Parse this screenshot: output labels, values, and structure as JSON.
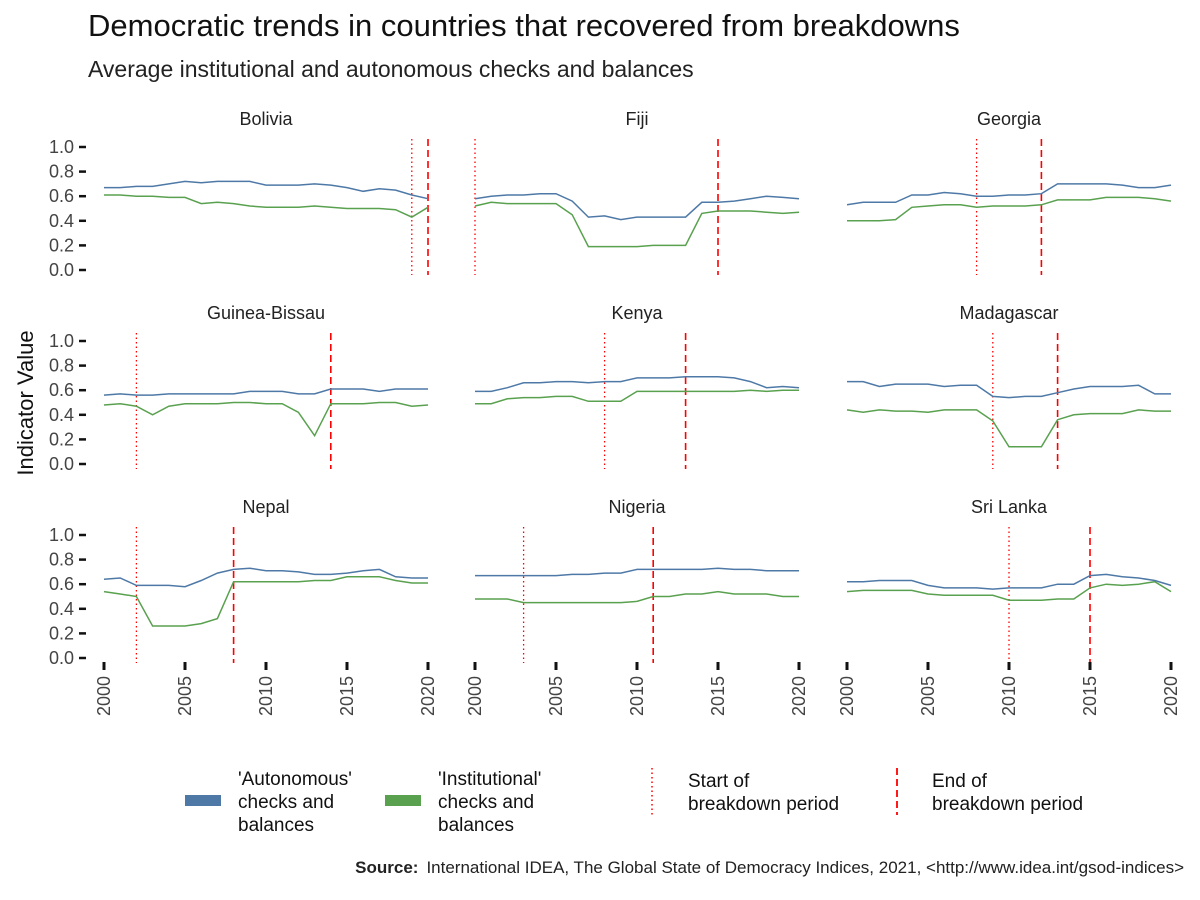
{
  "title": "Democratic trends in countries that recovered from breakdowns",
  "subtitle": "Average institutional and autonomous checks and balances",
  "source": {
    "label": "Source:",
    "text": "International IDEA, The Global State of Democracy Indices, 2021, <http://www.idea.int/gsod-indices>"
  },
  "colors": {
    "autonomous": "#4e79a7",
    "institutional": "#59a14f",
    "breakdown_lines": "#ff0000"
  },
  "chart_data": {
    "type": "line",
    "ylabel": "Indicator Value",
    "ylim": [
      0,
      1
    ],
    "yticks": [
      "0.0",
      "0.2",
      "0.4",
      "0.6",
      "0.8",
      "1.0"
    ],
    "xlim": [
      2000,
      2020
    ],
    "xticks": [
      "2000",
      "2005",
      "2010",
      "2015",
      "2020"
    ],
    "grid": false,
    "legend_position": "bottom",
    "years": [
      2000,
      2001,
      2002,
      2003,
      2004,
      2005,
      2006,
      2007,
      2008,
      2009,
      2010,
      2011,
      2012,
      2013,
      2014,
      2015,
      2016,
      2017,
      2018,
      2019,
      2020
    ],
    "legend": {
      "autonomous": [
        "'Autonomous'",
        "checks and",
        "balances"
      ],
      "institutional": [
        "'Institutional'",
        "checks and",
        "balances"
      ],
      "start": [
        "Start of",
        " breakdown period"
      ],
      "end": [
        "End of",
        " breakdown period"
      ]
    },
    "facets": [
      {
        "country": "Bolivia",
        "start": 2019,
        "end": 2020,
        "autonomous": [
          0.67,
          0.67,
          0.68,
          0.68,
          0.7,
          0.72,
          0.71,
          0.72,
          0.72,
          0.72,
          0.69,
          0.69,
          0.69,
          0.7,
          0.69,
          0.67,
          0.64,
          0.66,
          0.65,
          0.61,
          0.58
        ],
        "institutional": [
          0.61,
          0.61,
          0.6,
          0.6,
          0.59,
          0.59,
          0.54,
          0.55,
          0.54,
          0.52,
          0.51,
          0.51,
          0.51,
          0.52,
          0.51,
          0.5,
          0.5,
          0.5,
          0.49,
          0.43,
          0.51
        ]
      },
      {
        "country": "Fiji",
        "start": 2000,
        "end": 2015,
        "autonomous": [
          0.58,
          0.6,
          0.61,
          0.61,
          0.62,
          0.62,
          0.56,
          0.43,
          0.44,
          0.41,
          0.43,
          0.43,
          0.43,
          0.43,
          0.55,
          0.55,
          0.56,
          0.58,
          0.6,
          0.59,
          0.58
        ],
        "institutional": [
          0.52,
          0.55,
          0.54,
          0.54,
          0.54,
          0.54,
          0.45,
          0.19,
          0.19,
          0.19,
          0.19,
          0.2,
          0.2,
          0.2,
          0.46,
          0.48,
          0.48,
          0.48,
          0.47,
          0.46,
          0.47
        ]
      },
      {
        "country": "Georgia",
        "start": 2008,
        "end": 2012,
        "autonomous": [
          0.53,
          0.55,
          0.55,
          0.55,
          0.61,
          0.61,
          0.63,
          0.62,
          0.6,
          0.6,
          0.61,
          0.61,
          0.62,
          0.7,
          0.7,
          0.7,
          0.7,
          0.69,
          0.67,
          0.67,
          0.69
        ],
        "institutional": [
          0.4,
          0.4,
          0.4,
          0.41,
          0.51,
          0.52,
          0.53,
          0.53,
          0.51,
          0.52,
          0.52,
          0.52,
          0.53,
          0.57,
          0.57,
          0.57,
          0.59,
          0.59,
          0.59,
          0.58,
          0.56
        ]
      },
      {
        "country": "Guinea-Bissau",
        "start": 2002,
        "end": 2014,
        "autonomous": [
          0.56,
          0.57,
          0.56,
          0.56,
          0.57,
          0.57,
          0.57,
          0.57,
          0.57,
          0.59,
          0.59,
          0.59,
          0.57,
          0.57,
          0.61,
          0.61,
          0.61,
          0.59,
          0.61,
          0.61,
          0.61
        ],
        "institutional": [
          0.48,
          0.49,
          0.47,
          0.4,
          0.47,
          0.49,
          0.49,
          0.49,
          0.5,
          0.5,
          0.49,
          0.49,
          0.42,
          0.23,
          0.49,
          0.49,
          0.49,
          0.5,
          0.5,
          0.47,
          0.48
        ]
      },
      {
        "country": "Kenya",
        "start": 2008,
        "end": 2013,
        "autonomous": [
          0.59,
          0.59,
          0.62,
          0.66,
          0.66,
          0.67,
          0.67,
          0.66,
          0.67,
          0.67,
          0.7,
          0.7,
          0.7,
          0.71,
          0.71,
          0.71,
          0.7,
          0.67,
          0.62,
          0.63,
          0.62
        ],
        "institutional": [
          0.49,
          0.49,
          0.53,
          0.54,
          0.54,
          0.55,
          0.55,
          0.51,
          0.51,
          0.51,
          0.59,
          0.59,
          0.59,
          0.59,
          0.59,
          0.59,
          0.59,
          0.6,
          0.59,
          0.6,
          0.6
        ]
      },
      {
        "country": "Madagascar",
        "start": 2009,
        "end": 2013,
        "autonomous": [
          0.67,
          0.67,
          0.63,
          0.65,
          0.65,
          0.65,
          0.63,
          0.64,
          0.64,
          0.55,
          0.54,
          0.55,
          0.55,
          0.58,
          0.61,
          0.63,
          0.63,
          0.63,
          0.64,
          0.57,
          0.57
        ],
        "institutional": [
          0.44,
          0.42,
          0.44,
          0.43,
          0.43,
          0.42,
          0.44,
          0.44,
          0.44,
          0.35,
          0.14,
          0.14,
          0.14,
          0.36,
          0.4,
          0.41,
          0.41,
          0.41,
          0.44,
          0.43,
          0.43
        ]
      },
      {
        "country": "Nepal",
        "start": 2002,
        "end": 2008,
        "autonomous": [
          0.64,
          0.65,
          0.59,
          0.59,
          0.59,
          0.58,
          0.63,
          0.69,
          0.72,
          0.73,
          0.71,
          0.71,
          0.7,
          0.68,
          0.68,
          0.69,
          0.71,
          0.72,
          0.66,
          0.65,
          0.65
        ],
        "institutional": [
          0.54,
          0.52,
          0.5,
          0.26,
          0.26,
          0.26,
          0.28,
          0.32,
          0.62,
          0.62,
          0.62,
          0.62,
          0.62,
          0.63,
          0.63,
          0.66,
          0.66,
          0.66,
          0.63,
          0.61,
          0.61
        ]
      },
      {
        "country": "Nigeria",
        "start": 2003,
        "end": 2011,
        "autonomous": [
          0.67,
          0.67,
          0.67,
          0.67,
          0.67,
          0.67,
          0.68,
          0.68,
          0.69,
          0.69,
          0.72,
          0.72,
          0.72,
          0.72,
          0.72,
          0.73,
          0.72,
          0.72,
          0.71,
          0.71,
          0.71
        ],
        "institutional": [
          0.48,
          0.48,
          0.48,
          0.45,
          0.45,
          0.45,
          0.45,
          0.45,
          0.45,
          0.45,
          0.46,
          0.5,
          0.5,
          0.52,
          0.52,
          0.54,
          0.52,
          0.52,
          0.52,
          0.5,
          0.5
        ]
      },
      {
        "country": "Sri Lanka",
        "start": 2010,
        "end": 2015,
        "autonomous": [
          0.62,
          0.62,
          0.63,
          0.63,
          0.63,
          0.59,
          0.57,
          0.57,
          0.57,
          0.56,
          0.57,
          0.57,
          0.57,
          0.6,
          0.6,
          0.67,
          0.68,
          0.66,
          0.65,
          0.63,
          0.59
        ],
        "institutional": [
          0.54,
          0.55,
          0.55,
          0.55,
          0.55,
          0.52,
          0.51,
          0.51,
          0.51,
          0.51,
          0.47,
          0.47,
          0.47,
          0.48,
          0.48,
          0.57,
          0.6,
          0.59,
          0.6,
          0.62,
          0.54
        ]
      }
    ]
  }
}
